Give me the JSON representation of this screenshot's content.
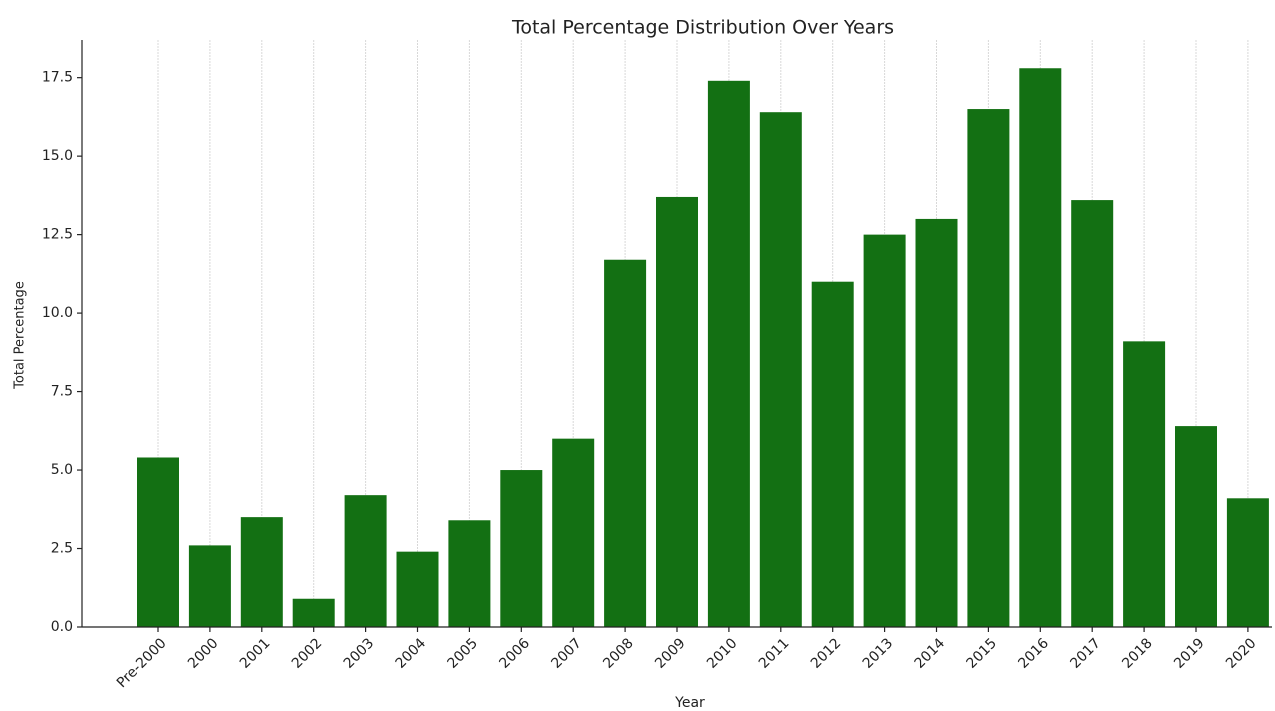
{
  "chart_data": {
    "type": "bar",
    "title": "Total Percentage Distribution Over Years",
    "x_label": "Year",
    "y_label": "Total Percentage",
    "categories": [
      "Pre-2000",
      "2000",
      "2001",
      "2002",
      "2003",
      "2004",
      "2005",
      "2006",
      "2007",
      "2008",
      "2009",
      "2010",
      "2011",
      "2012",
      "2013",
      "2014",
      "2015",
      "2016",
      "2017",
      "2018",
      "2019",
      "2020"
    ],
    "values": [
      5.4,
      2.6,
      3.5,
      0.9,
      4.2,
      2.4,
      3.4,
      5.0,
      6.0,
      11.7,
      13.7,
      17.4,
      16.4,
      11.0,
      12.5,
      13.0,
      16.5,
      17.8,
      13.6,
      9.1,
      6.4,
      4.1
    ],
    "color": "#137013",
    "ylim": [
      0,
      18.7
    ],
    "yticks": [
      {
        "value": 0,
        "label": "0.0"
      },
      2.5,
      {
        "value": 5,
        "label": "5.0"
      },
      7.5,
      {
        "value": 10,
        "label": "10.0"
      },
      12.5,
      {
        "value": 15,
        "label": "15.0"
      },
      17.5
    ],
    "grid": "x"
  }
}
